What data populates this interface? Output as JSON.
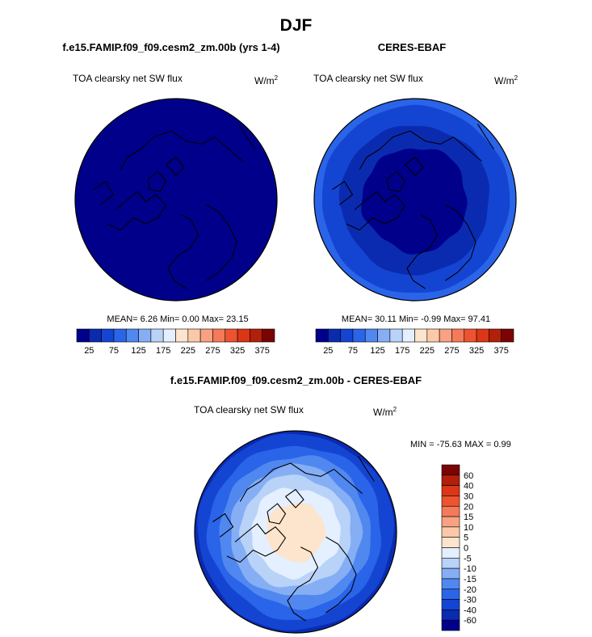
{
  "figure": {
    "title": "DJF"
  },
  "panels": [
    {
      "title": "f.e15.FAMIP.f09_f09.cesm2_zm.00b (yrs 1-4)",
      "variable": "TOA clearsky net SW flux",
      "units_base": "W/m",
      "units_exp": "2",
      "stats": {
        "mean": "6.26",
        "min": "0.00",
        "max": "23.15"
      },
      "stats_text": "MEAN=  6.26  Min=   0.00  Max=  23.15"
    },
    {
      "title": "CERES-EBAF",
      "variable": "TOA clearsky net SW flux",
      "units_base": "W/m",
      "units_exp": "2",
      "stats": {
        "mean": "30.11",
        "min": "-0.99",
        "max": "97.41"
      },
      "stats_text": "MEAN=  30.11  Min=  -0.99  Max=  97.41"
    },
    {
      "title": "f.e15.FAMIP.f09_f09.cesm2_zm.00b - CERES-EBAF",
      "variable": "TOA clearsky net SW flux",
      "units_base": "W/m",
      "units_exp": "2",
      "stats": {
        "min": "-75.63",
        "max": "0.99"
      },
      "stats_text": "MIN = -75.63 MAX =   0.99"
    }
  ],
  "chart_data": [
    {
      "type": "heatmap",
      "projection": "north-polar-stereographic",
      "title": "f.e15.FAMIP.f09_f09.cesm2_zm.00b (yrs 1-4)",
      "variable": "TOA clearsky net SW flux",
      "units": "W/m^2",
      "mean": 6.26,
      "min": 0.0,
      "max": 23.15,
      "field_description": "uniform lowest band across the whole cap",
      "levels": [
        0,
        25,
        50,
        75,
        100,
        125,
        150,
        175,
        200,
        225,
        250,
        275,
        300,
        325,
        350,
        375,
        400
      ],
      "colorbar": {
        "tick_labels": [
          "25",
          "75",
          "125",
          "175",
          "225",
          "275",
          "325",
          "375"
        ],
        "colors": [
          "#00008b",
          "#0a2bb0",
          "#1445d2",
          "#2a64e8",
          "#5088f0",
          "#85aef4",
          "#b8d2f8",
          "#e4efff",
          "#fde4cc",
          "#fcc9a8",
          "#f9a183",
          "#f57a59",
          "#ee5330",
          "#db3616",
          "#b21f0a",
          "#7a0403"
        ]
      }
    },
    {
      "type": "heatmap",
      "projection": "north-polar-stereographic",
      "title": "CERES-EBAF",
      "variable": "TOA clearsky net SW flux",
      "units": "W/m^2",
      "mean": 30.11,
      "min": -0.99,
      "max": 97.41,
      "field_description": "darkest near pole, increasing outward in rings",
      "levels": [
        0,
        25,
        50,
        75,
        100,
        125,
        150,
        175,
        200,
        225,
        250,
        275,
        300,
        325,
        350,
        375,
        400
      ],
      "colorbar": {
        "tick_labels": [
          "25",
          "75",
          "125",
          "175",
          "225",
          "275",
          "325",
          "375"
        ],
        "colors": [
          "#00008b",
          "#0a2bb0",
          "#1445d2",
          "#2a64e8",
          "#5088f0",
          "#85aef4",
          "#b8d2f8",
          "#e4efff",
          "#fde4cc",
          "#fcc9a8",
          "#f9a183",
          "#f57a59",
          "#ee5330",
          "#db3616",
          "#b21f0a",
          "#7a0403"
        ]
      }
    },
    {
      "type": "heatmap",
      "projection": "north-polar-stereographic",
      "title": "f.e15.FAMIP.f09_f09.cesm2_zm.00b - CERES-EBAF",
      "variable": "TOA clearsky net SW flux",
      "units": "W/m^2",
      "min": -75.63,
      "max": 0.99,
      "field_description": "near zero at pole, strongly negative toward the edge",
      "colorbar": {
        "orientation": "vertical",
        "tick_labels": [
          "60",
          "40",
          "30",
          "20",
          "15",
          "10",
          "5",
          "0",
          "-5",
          "-10",
          "-15",
          "-20",
          "-30",
          "-40",
          "-60"
        ],
        "colors": [
          "#7a0403",
          "#b21f0a",
          "#db3616",
          "#ee5330",
          "#f57a59",
          "#f9a183",
          "#fcc9a8",
          "#fde4cc",
          "#e4efff",
          "#b8d2f8",
          "#85aef4",
          "#5088f0",
          "#2a64e8",
          "#1445d2",
          "#0a2bb0",
          "#00008b"
        ]
      }
    }
  ]
}
